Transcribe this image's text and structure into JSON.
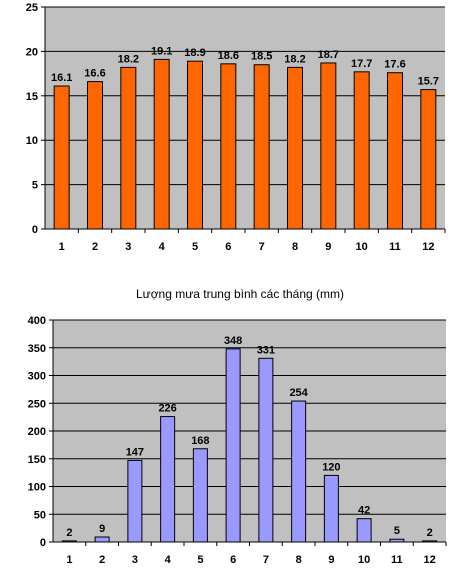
{
  "chart_data": [
    {
      "type": "bar",
      "title": "",
      "xlabel": "",
      "ylabel": "",
      "categories": [
        "1",
        "2",
        "3",
        "4",
        "5",
        "6",
        "7",
        "8",
        "9",
        "10",
        "11",
        "12"
      ],
      "values": [
        16.1,
        16.6,
        18.2,
        19.1,
        18.9,
        18.6,
        18.5,
        18.2,
        18.7,
        17.7,
        17.6,
        15.7
      ],
      "data_labels": [
        "16.1",
        "16.6",
        "18.2",
        "19.1",
        "18.9",
        "18.6",
        "18.5",
        "18.2",
        "18.7",
        "17.7",
        "17.6",
        "15.7"
      ],
      "ylim": [
        0,
        25
      ],
      "yticks": [
        0,
        5,
        10,
        15,
        20,
        25
      ],
      "grid": true,
      "legend": "none",
      "colors": {
        "bar": "#ff6600",
        "plot_background": "#c0c0c0"
      }
    },
    {
      "type": "bar",
      "title": "Lượng mưa trung bình các tháng (mm)",
      "xlabel": "",
      "ylabel": "",
      "categories": [
        "1",
        "2",
        "3",
        "4",
        "5",
        "6",
        "7",
        "8",
        "9",
        "10",
        "11",
        "12"
      ],
      "values": [
        2,
        9,
        147,
        226,
        168,
        348,
        331,
        254,
        120,
        42,
        5,
        2
      ],
      "data_labels": [
        "2",
        "9",
        "147",
        "226",
        "168",
        "348",
        "331",
        "254",
        "120",
        "42",
        "5",
        "2"
      ],
      "ylim": [
        0,
        400
      ],
      "yticks": [
        0,
        50,
        100,
        150,
        200,
        250,
        300,
        350,
        400
      ],
      "grid": true,
      "legend": "none",
      "colors": {
        "bar": "#9999ff",
        "plot_background": "#c0c0c0"
      }
    }
  ]
}
